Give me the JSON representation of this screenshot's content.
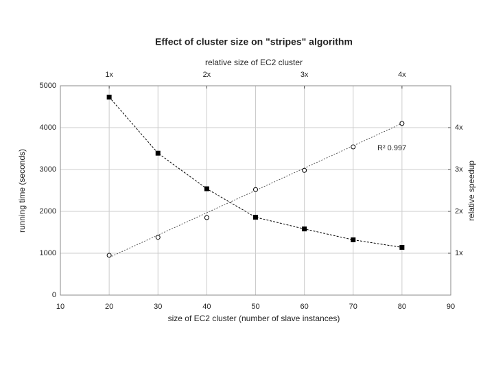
{
  "chart_data": {
    "type": "line",
    "title": "Effect of cluster size on \"stripes\" algorithm",
    "top_axis_label": "relative size of EC2 cluster",
    "xlabel": "size of EC2 cluster (number of slave instances)",
    "ylabel": "running time (seconds)",
    "y2label": "relative speedup",
    "annotation": "R² 0.997",
    "x": [
      20,
      30,
      40,
      50,
      60,
      70,
      80
    ],
    "xlim": [
      10,
      90
    ],
    "xticks": [
      10,
      20,
      30,
      40,
      50,
      60,
      70,
      80,
      90
    ],
    "ylim": [
      0,
      5000
    ],
    "yticks": [
      0,
      1000,
      2000,
      3000,
      4000,
      5000
    ],
    "y2lim": [
      0,
      5
    ],
    "y2ticks": [
      {
        "value": 1,
        "label": "1x"
      },
      {
        "value": 2,
        "label": "2x"
      },
      {
        "value": 3,
        "label": "3x"
      },
      {
        "value": 4,
        "label": "4x"
      }
    ],
    "x2lim": [
      0.5,
      4.5
    ],
    "x2ticks": [
      {
        "value": 1,
        "label": "1x"
      },
      {
        "value": 2,
        "label": "2x"
      },
      {
        "value": 3,
        "label": "3x"
      },
      {
        "value": 4,
        "label": "4x"
      }
    ],
    "grid": true,
    "series": [
      {
        "color": "#000000",
        "marker": "filled-square",
        "values": [
          4730,
          3390,
          2540,
          1860,
          1580,
          1320,
          1140
        ]
      },
      {
        "color": "#000000",
        "marker": "open-circle",
        "axis": "y2",
        "values": [
          0.95,
          1.38,
          1.85,
          2.52,
          2.98,
          3.54,
          4.1
        ]
      }
    ],
    "fit": {
      "x": [
        20,
        80
      ],
      "values": [
        0.9,
        4.1
      ],
      "axis": "y2",
      "color": "#555555"
    }
  }
}
